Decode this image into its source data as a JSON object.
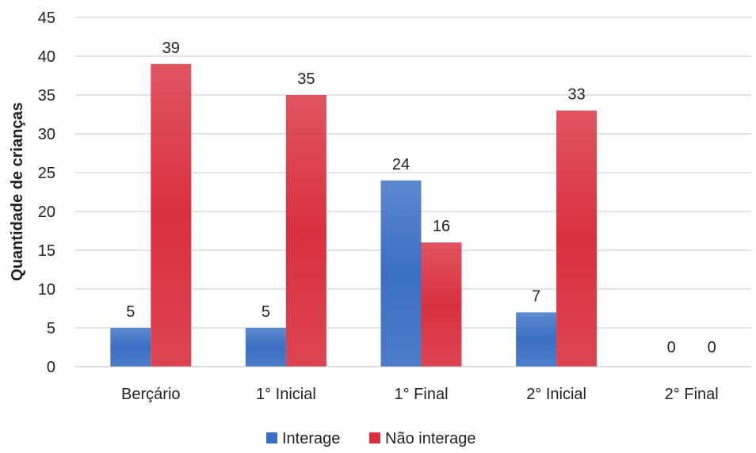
{
  "chart_data": {
    "type": "bar",
    "categories": [
      "Berçário",
      "1° Inicial",
      "1° Final",
      "2° Inicial",
      "2° Final"
    ],
    "series": [
      {
        "name": "Interage",
        "values": [
          5,
          5,
          24,
          7,
          0
        ],
        "color": "#3a6fc4"
      },
      {
        "name": "Não interage",
        "values": [
          39,
          35,
          16,
          33,
          0
        ],
        "color": "#d9303e"
      }
    ],
    "ylabel": "Quantidade de crianças",
    "xlabel": "",
    "ylim": [
      0,
      45
    ],
    "yticks": [
      0,
      5,
      10,
      15,
      20,
      25,
      30,
      35,
      40,
      45
    ],
    "grid": true,
    "legend_position": "bottom",
    "data_labels": true
  }
}
